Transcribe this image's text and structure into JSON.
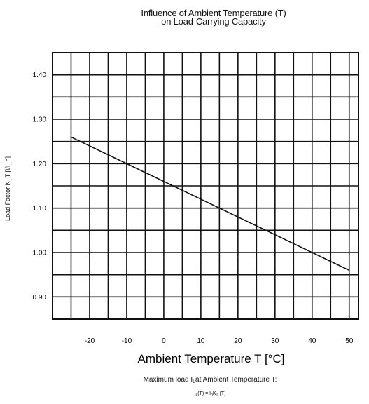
{
  "title_line1": "Influence of Ambient Temperature (T)",
  "title_line2": "on Load-Carrying Capacity",
  "caption_line1": "Maximum load Iₗat Ambient Temperature T:",
  "formula": {
    "base": "I",
    "sub1": "L",
    "mid": "(T) = I",
    "sub2": "n",
    "k": "K",
    "sub3": "T",
    "end": " (T)"
  },
  "chart_data": {
    "type": "line",
    "title": "Influence of Ambient Temperature (T) on Load-Carrying Capacity",
    "xlabel": "Ambient Temperature T [°C]",
    "ylabel": "Load Factor K_T [I/I_n]",
    "xlim": [
      -30,
      52.5
    ],
    "ylim": [
      0.85,
      1.45
    ],
    "x_ticks": [
      -20,
      -10,
      0,
      10,
      20,
      30,
      40,
      50
    ],
    "y_ticks": [
      0.9,
      1.0,
      1.1,
      1.2,
      1.3,
      1.4
    ],
    "x_tick_labels": [
      "-20",
      "-10",
      "0",
      "10",
      "20",
      "30",
      "40",
      "50"
    ],
    "y_tick_labels": [
      "0.90",
      "1.00",
      "1.10",
      "1.20",
      "1.30",
      "1.40"
    ],
    "grid": true,
    "series": [
      {
        "x": [
          -25,
          50
        ],
        "y": [
          1.26,
          0.96
        ]
      }
    ],
    "line_color": "#111111"
  }
}
